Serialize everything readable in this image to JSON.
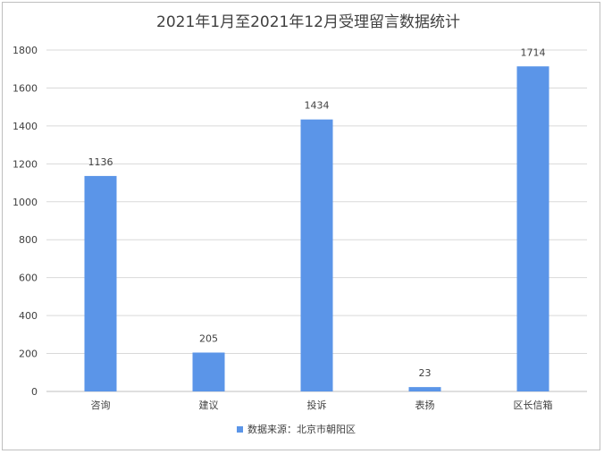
{
  "chart_data": {
    "type": "bar",
    "title": "2021年1月至2021年12月受理留言数据统计",
    "categories": [
      "咨询",
      "建议",
      "投诉",
      "表扬",
      "区长信箱"
    ],
    "series": [
      {
        "name": "数据来源：北京市朝阳区",
        "values": [
          1136,
          205,
          1434,
          23,
          1714
        ]
      }
    ],
    "ylim": [
      0,
      1800
    ],
    "yticks": [
      0,
      200,
      400,
      600,
      800,
      1000,
      1200,
      1400,
      1600,
      1800
    ],
    "grid": true,
    "legend": "bottom",
    "bar_color": "#5b95e8"
  }
}
